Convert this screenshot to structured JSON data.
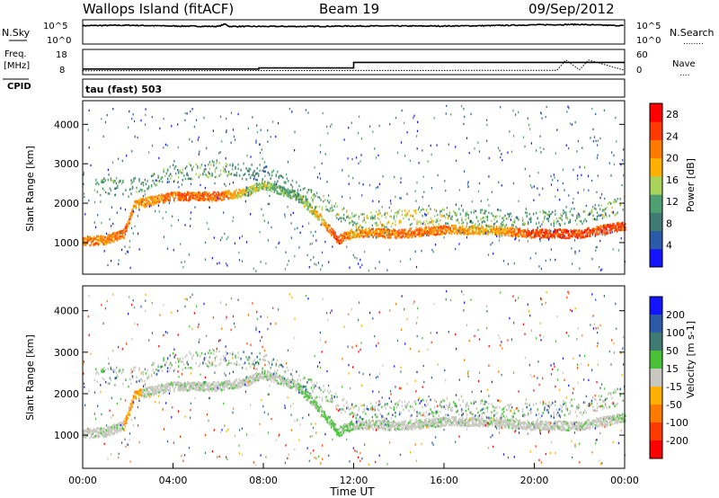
{
  "header": {
    "station": "Wallops Island (fitACF)",
    "beam": "Beam 19",
    "date": "09/Sep/2012"
  },
  "colors": {
    "power_scale": [
      "#1414ff",
      "#2a5aa8",
      "#3f7a73",
      "#4fa070",
      "#a8d45a",
      "#ffb000",
      "#ff7a00",
      "#ff3a00",
      "#ff0000"
    ],
    "velocity_scale": [
      "#1414ff",
      "#2a5aa8",
      "#3f7a73",
      "#49c23a",
      "#c8c8c0",
      "#ffb000",
      "#ff7a00",
      "#ff3a00",
      "#ff0000"
    ]
  },
  "chart_data": [
    {
      "type": "line",
      "panel": "noise",
      "labels_left": {
        "top": "N.Sky",
        "tick_top": "10^5",
        "tick_bottom": "10^0"
      },
      "labels_right": {
        "top": "N.Search",
        "tick_top": "10^5",
        "tick_bottom": "10^0",
        "marker": "........"
      },
      "series": [
        {
          "name": "N.Sky",
          "x": [
            0,
            0.2,
            2,
            4,
            6,
            6.3,
            6.5,
            8,
            10,
            12,
            14,
            16,
            18,
            20,
            22,
            23,
            24
          ],
          "y_log": [
            4.2,
            4.2,
            4.3,
            4.1,
            4.0,
            4.6,
            4.0,
            4.0,
            4.0,
            4.1,
            4.1,
            4.1,
            4.2,
            4.4,
            4.5,
            4.3,
            4.2
          ]
        }
      ]
    },
    {
      "type": "line",
      "panel": "frequency",
      "labels_left": {
        "title": "Freq.",
        "unit": "[MHz]",
        "tick_top": "18",
        "tick_bottom": "8",
        "cpid": "CPID"
      },
      "labels_right": {
        "title": "Nave",
        "tick_top": "60",
        "tick_bottom": "0",
        "marker": "...."
      },
      "series": [
        {
          "name": "Freq.",
          "x": [
            0,
            0.1,
            7.8,
            12,
            24
          ],
          "y": [
            10.5,
            10.5,
            11.2,
            14.8,
            14.8
          ]
        },
        {
          "name": "Nave",
          "x": [
            0,
            21,
            21.4,
            22,
            22.4,
            24
          ],
          "y": [
            8,
            10,
            50,
            12,
            50,
            10
          ]
        }
      ],
      "cpid_text": "tau (fast) 503"
    },
    {
      "type": "heatmap",
      "panel": "power",
      "ylabel": "Slant Range [km]",
      "yticks": [
        "1000",
        "2000",
        "3000",
        "4000"
      ],
      "ylim": [
        200,
        4600
      ],
      "colorbar": {
        "label": "Power [dB]",
        "ticks": [
          "4",
          "8",
          "12",
          "16",
          "20",
          "24",
          "28"
        ],
        "range": [
          0,
          30
        ]
      },
      "bands": [
        {
          "x": [
            0,
            1,
            1.8,
            2.3,
            4,
            6,
            7.2,
            8,
            9.5,
            10.5,
            11.3,
            12,
            14,
            16,
            18,
            20,
            22,
            24
          ],
          "range": [
            1050,
            1100,
            1250,
            2000,
            2200,
            2200,
            2300,
            2500,
            2200,
            1650,
            1100,
            1280,
            1250,
            1350,
            1350,
            1250,
            1250,
            1450
          ],
          "power": [
            22,
            22,
            24,
            20,
            24,
            24,
            16,
            14,
            12,
            18,
            26,
            20,
            24,
            22,
            18,
            26,
            26,
            26
          ]
        },
        {
          "x": [
            0.5,
            2,
            4,
            6,
            8,
            12,
            14,
            16,
            18,
            20,
            22,
            24
          ],
          "range": [
            2500,
            2400,
            2800,
            2900,
            2800,
            1600,
            1650,
            1700,
            1650,
            1600,
            1700,
            2000
          ],
          "power": [
            12,
            10,
            12,
            12,
            8,
            14,
            16,
            14,
            12,
            10,
            12,
            14
          ]
        }
      ]
    },
    {
      "type": "heatmap",
      "panel": "velocity",
      "ylabel": "Slant Range [km]",
      "yticks": [
        "1000",
        "2000",
        "3000",
        "4000"
      ],
      "ylim": [
        200,
        4600
      ],
      "xlabel": "Time UT",
      "xticks": [
        "00:00",
        "04:00",
        "08:00",
        "12:00",
        "16:00",
        "20:00",
        "00:00"
      ],
      "xlim": [
        0,
        24
      ],
      "colorbar": {
        "label": "Velocity [m s-1]",
        "ticks": [
          "200",
          "100",
          "50",
          "15",
          "-15",
          "-50",
          "-100",
          "-200"
        ]
      }
    }
  ]
}
